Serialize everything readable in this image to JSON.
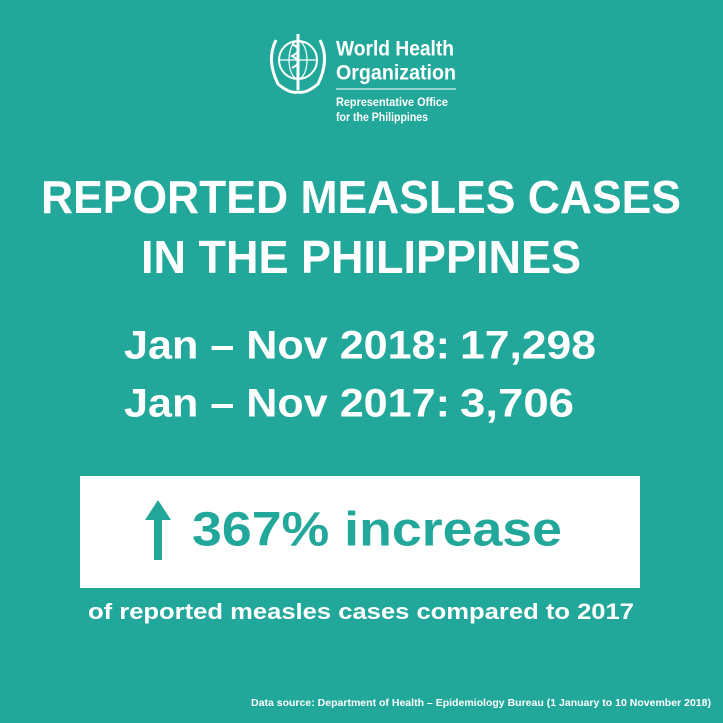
{
  "logo": {
    "name_line1": "World Health",
    "name_line2": "Organization",
    "office_line1": "Representative Office",
    "office_line2": "for the Philippines"
  },
  "title": {
    "line1": "REPORTED MEASLES CASES",
    "line2": "IN THE PHILIPPINES"
  },
  "stats": [
    {
      "period": "Jan – Nov 2018:",
      "value": "17,298"
    },
    {
      "period": "Jan – Nov 2017:",
      "value": "3,706"
    }
  ],
  "highlight": {
    "text": "367% increase",
    "caption": "of reported measles cases compared to 2017"
  },
  "source": "Data source: Department of Health – Epidemiology Bureau (1 January to 10 November 2018)"
}
